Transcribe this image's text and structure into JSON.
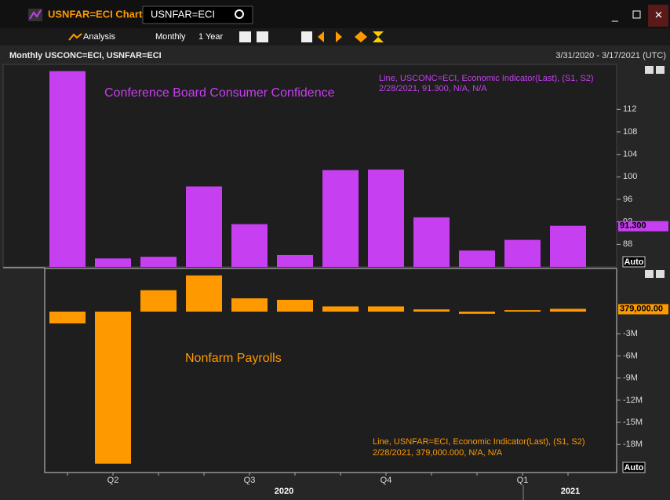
{
  "window": {
    "title": "USNFAR=ECI Chart",
    "search": "USNFAR=ECI",
    "menu": [
      "Analysis",
      "Monthly",
      "1 Year"
    ],
    "header": "Monthly USCONC=ECI, USNFAR=ECI",
    "range": "3/31/2020 - 3/17/2021 (UTC)",
    "auto": "Auto",
    "year_labels": [
      "2020",
      "2021"
    ]
  },
  "chart_data": [
    {
      "type": "bar",
      "annotation": "Conference Board Consumer Confidence",
      "color": "#c63ff0",
      "legend": [
        "Line, USCONC=ECI, Economic Indicator(Last), (S1, S2)",
        "2/28/2021, 91.300, N/A, N/A"
      ],
      "last_value_label": "91.300",
      "categories": [
        null,
        "Q2",
        null,
        null,
        "Q3",
        null,
        null,
        "Q4",
        null,
        null,
        "Q1",
        null
      ],
      "values": [
        118.8,
        85.5,
        85.8,
        98.3,
        91.6,
        86.1,
        101.2,
        101.3,
        92.8,
        86.9,
        88.8,
        91.3
      ],
      "ylim": [
        84,
        120
      ],
      "yticks": [
        88,
        92,
        96,
        100,
        104,
        108,
        112
      ],
      "grid": false
    },
    {
      "type": "bar",
      "annotation": "Nonfarm Payrolls",
      "color": "#ff9900",
      "legend": [
        "Line, USNFAR=ECI, Economic Indicator(Last), (S1, S2)",
        "2/28/2021, 379,000.000, N/A, N/A"
      ],
      "last_value_label": "379,000.00",
      "categories": [
        null,
        "Q2",
        null,
        null,
        "Q3",
        null,
        null,
        "Q4",
        null,
        null,
        "Q1",
        null
      ],
      "values": [
        -1600000,
        -20600000,
        2900000,
        4900000,
        1800000,
        1600000,
        700000,
        700000,
        300000,
        -300000,
        200000,
        379000
      ],
      "ylim": [
        -21800000,
        5850000
      ],
      "yticks": [
        {
          "value": -3000000,
          "label": "-3M"
        },
        {
          "value": -6000000,
          "label": "-6M"
        },
        {
          "value": -9000000,
          "label": "-9M"
        },
        {
          "value": -12000000,
          "label": "-12M"
        },
        {
          "value": -15000000,
          "label": "-15M"
        },
        {
          "value": -18000000,
          "label": "-18M"
        }
      ],
      "grid": false
    }
  ]
}
